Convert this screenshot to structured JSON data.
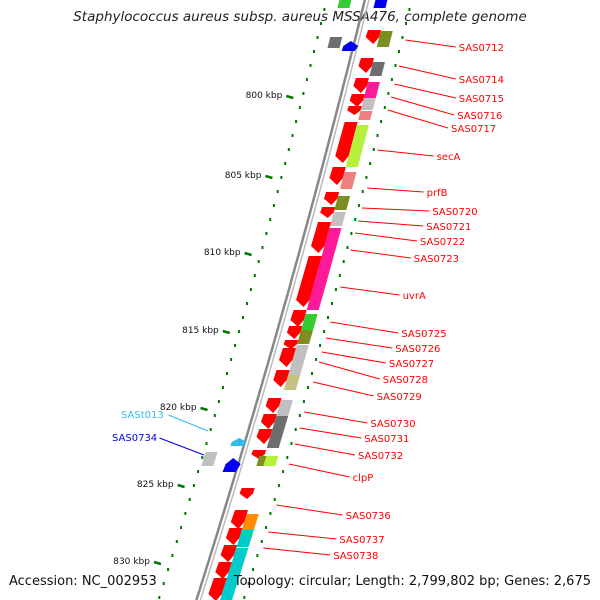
{
  "header": {
    "title": "Staphylococcus aureus subsp. aureus MSSA476, complete genome"
  },
  "footer": {
    "accession": "Accession: NC_002953",
    "topology": "Topology: circular; Length: 2,799,802 bp; Genes: 2,675"
  },
  "ticks": [
    "800 kbp",
    "805 kbp",
    "810 kbp",
    "815 kbp",
    "820 kbp",
    "825 kbp",
    "830 kbp"
  ],
  "colors": {
    "red": "#ff0000",
    "green": "#33cc33",
    "olive": "#7a8f1f",
    "lime": "#b6f03c",
    "pink": "#ff1a9a",
    "salmon": "#f08080",
    "gray": "#c0c0c0",
    "darkgray": "#6e6e6e",
    "khaki": "#c8c080",
    "orange": "#ff8c00",
    "cyan": "#00cccc",
    "blue": "#0000ee",
    "skyblue": "#33bbee",
    "tick": "#007700",
    "backbone": "#888888"
  },
  "right_labels": [
    "SAS0712",
    "SAS0714",
    "SAS0715",
    "SAS0716",
    "SAS0717",
    "secA",
    "prfB",
    "SAS0720",
    "SAS0721",
    "SAS0722",
    "SAS0723",
    "uvrA",
    "SAS0725",
    "SAS0726",
    "SAS0727",
    "SAS0728",
    "SAS0729",
    "SAS0730",
    "SAS0731",
    "SAS0732",
    "clpP",
    "SAS0736",
    "SAS0737",
    "SAS0738"
  ],
  "left_labels": [
    {
      "text": "SASt013",
      "color": "skyblue"
    },
    {
      "text": "SAS0734",
      "color": "blue"
    }
  ]
}
